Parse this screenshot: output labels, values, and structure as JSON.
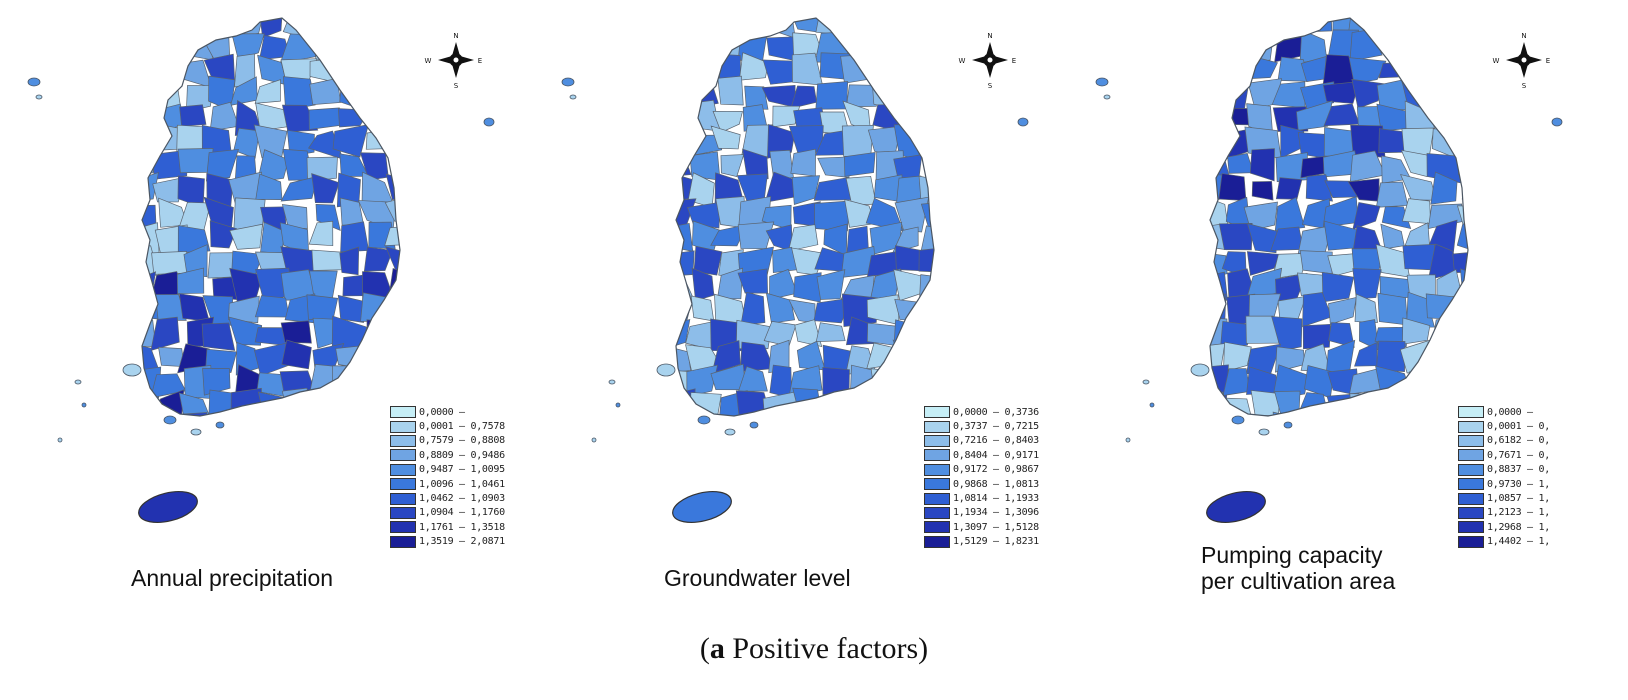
{
  "maps": [
    {
      "title_lines": [
        "Annual precipitation"
      ],
      "legend": [
        "0,0000 –",
        "0,0001 – 0,7578",
        "0,7579 – 0,8808",
        "0,8809 – 0,9486",
        "0,9487 – 1,0095",
        "1,0096 – 1,0461",
        "1,0462 – 1,0903",
        "1,0904 – 1,1760",
        "1,1761 – 1,3518",
        "1,3519 – 2,0871"
      ],
      "jeju_class": 8
    },
    {
      "title_lines": [
        "Groundwater level"
      ],
      "legend": [
        "0,0000 – 0,3736",
        "0,3737 – 0,7215",
        "0,7216 – 0,8403",
        "0,8404 – 0,9171",
        "0,9172 – 0,9867",
        "0,9868 – 1,0813",
        "1,0814 – 1,1933",
        "1,1934 – 1,3096",
        "1,3097 – 1,5128",
        "1,5129 – 1,8231"
      ],
      "jeju_class": 5
    },
    {
      "title_lines": [
        "Pumping capacity",
        "per cultivation area"
      ],
      "legend": [
        "0,0000 –",
        "0,0001 – 0,",
        "0,6182 – 0,",
        "0,7671 – 0,",
        "0,8837 – 0,",
        "0,9730 – 1,",
        "1,0857 – 1,",
        "1,2123 – 1,",
        "1,2968 – 1,",
        "1,4402 – 1,"
      ],
      "jeju_class": 8
    }
  ],
  "palette": [
    "#c6eef6",
    "#a9d3ee",
    "#8dbde9",
    "#6fa4e3",
    "#4f8ee0",
    "#3a78dc",
    "#2f5fd3",
    "#2a47c2",
    "#2232b0",
    "#1a1e96"
  ],
  "compass": {
    "n": "N",
    "s": "S",
    "e": "E",
    "w": "W"
  },
  "caption": {
    "letter": "a",
    "text": " Positive factors"
  }
}
